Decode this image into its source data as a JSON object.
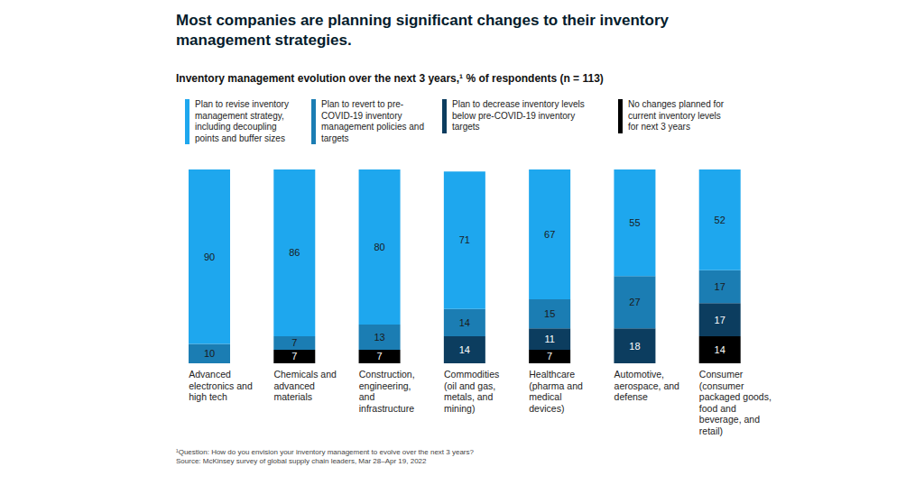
{
  "chart_data": {
    "type": "bar",
    "title": "Most companies are planning significant changes to their inventory management strategies.",
    "subtitle": "Inventory management evolution over the next 3 years,¹ % of respondents (n = 113)",
    "categories": [
      "Advanced electronics and high tech",
      "Chemicals and advanced materials",
      "Construction, engineering, and infrastructure",
      "Commodities (oil and gas, metals, and mining)",
      "Healthcare (pharma and medical devices)",
      "Automotive, aerospace, and defense",
      "Consumer (consumer packaged goods, food and beverage, and retail)"
    ],
    "series": [
      {
        "name": "Plan to revise inventory management strategy, including decoupling points and buffer sizes",
        "color": "#1ea7ee",
        "values": [
          90,
          86,
          80,
          71,
          67,
          55,
          52
        ]
      },
      {
        "name": "Plan to revert to pre-COVID-19 inventory management policies and targets",
        "color": "#1b7db3",
        "values": [
          10,
          7,
          13,
          14,
          15,
          27,
          17
        ]
      },
      {
        "name": "Plan to decrease inventory levels below pre-COVID-19 inventory targets",
        "color": "#0c3d5f",
        "values": [
          null,
          null,
          null,
          14,
          11,
          18,
          17
        ]
      },
      {
        "name": "No changes planned for current inventory levels for next 3 years",
        "color": "#000000",
        "values": [
          null,
          7,
          7,
          null,
          7,
          null,
          14
        ]
      }
    ],
    "ylim": [
      0,
      100
    ],
    "stacked": true,
    "data_labels": true,
    "tick_labels": "x",
    "legend": "top",
    "footnote": "¹Question: How do you envision your inventory management to evolve over the next 3 years?",
    "source": "Source: McKinsey survey of global supply chain leaders, Mar 28–Apr 19, 2022"
  }
}
